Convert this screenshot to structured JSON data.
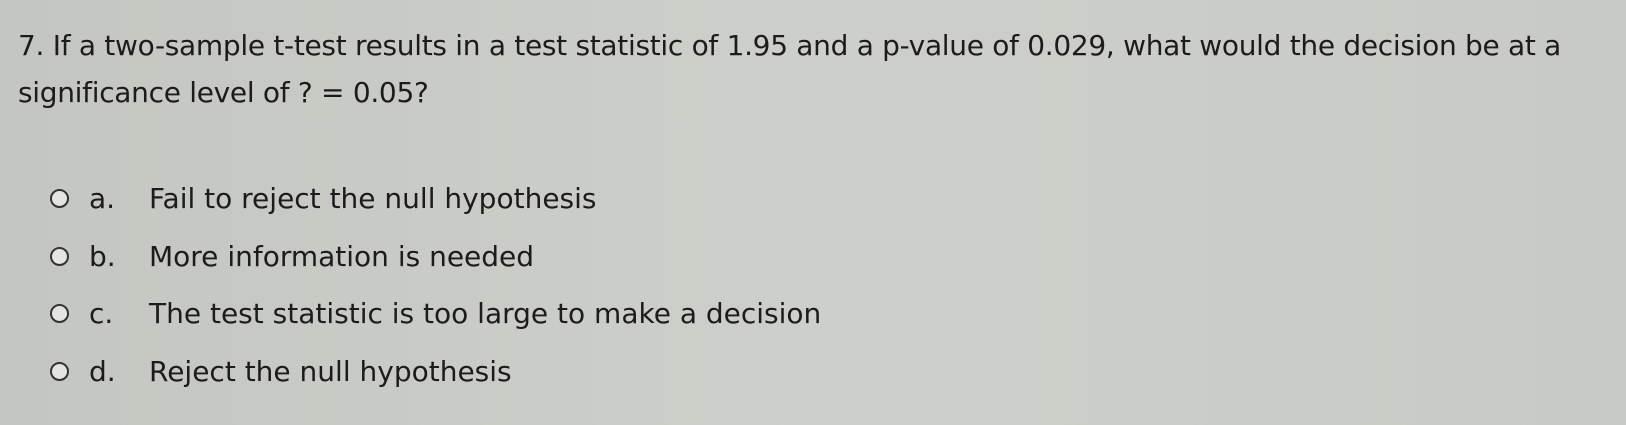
{
  "question": {
    "number": "7.",
    "text": "If a two-sample t-test results in a test statistic of 1.95 and a p-value of 0.029, what would the decision be at a significance level of ? = 0.05?"
  },
  "options": [
    {
      "letter": "a.",
      "text": "Fail to reject the null hypothesis",
      "selected": false
    },
    {
      "letter": "b.",
      "text": "More information is needed",
      "selected": false
    },
    {
      "letter": "c.",
      "text": "The test statistic is too large to make a decision",
      "selected": false
    },
    {
      "letter": "d.",
      "text": "Reject the null hypothesis",
      "selected": false
    }
  ]
}
